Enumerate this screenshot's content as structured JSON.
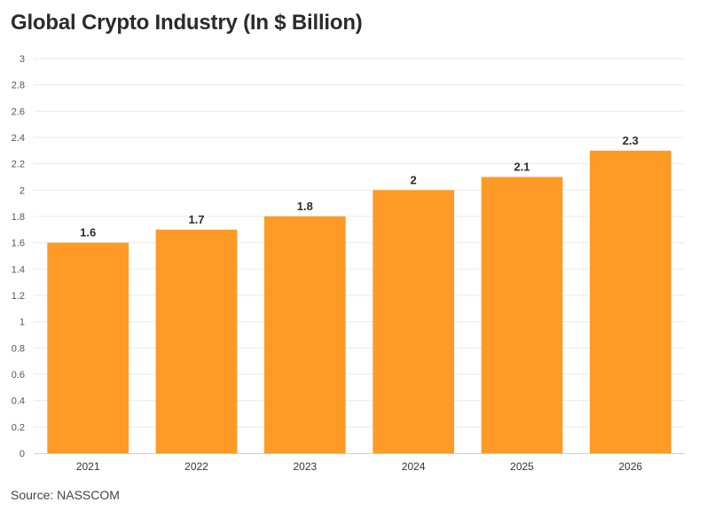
{
  "chart_data": {
    "type": "bar",
    "title": "Global Crypto Industry (In $ Billion)",
    "categories": [
      "2021",
      "2022",
      "2023",
      "2024",
      "2025",
      "2026"
    ],
    "values": [
      1.6,
      1.7,
      1.8,
      2,
      2.1,
      2.3
    ],
    "data_labels": [
      "1.6",
      "1.7",
      "1.8",
      "2",
      "2.1",
      "2.3"
    ],
    "ylim": [
      0,
      3
    ],
    "yticks": [
      "0",
      "0.2",
      "0.4",
      "0.6",
      "0.8",
      "1",
      "1.2",
      "1.4",
      "1.6",
      "1.8",
      "2",
      "2.2",
      "2.4",
      "2.6",
      "2.8",
      "3"
    ],
    "xlabel": "",
    "ylabel": "",
    "grid": true,
    "bar_color": "#ff9a26"
  },
  "source": "Source: NASSCOM"
}
